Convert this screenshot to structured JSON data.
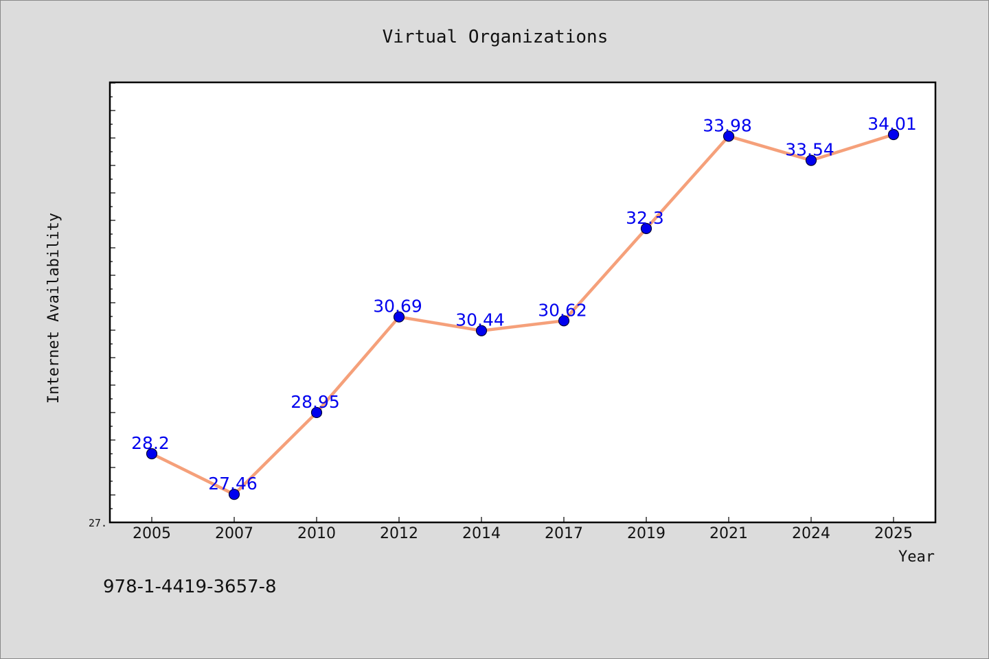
{
  "chart_data": {
    "type": "line",
    "title": "Virtual Organizations",
    "xlabel": "Year",
    "ylabel": "Internet Availability",
    "categories": [
      "2005",
      "2007",
      "2010",
      "2012",
      "2014",
      "2017",
      "2019",
      "2021",
      "2024",
      "2025"
    ],
    "series": [
      {
        "values": [
          28.2,
          27.46,
          28.95,
          30.69,
          30.44,
          30.62,
          32.3,
          33.98,
          33.54,
          34.01
        ],
        "labels": [
          "28.2",
          "27.46",
          "28.95",
          "30.69",
          "30.44",
          "30.62",
          "32.3",
          "33.98",
          "33.54",
          "34.01"
        ]
      }
    ],
    "ylim": [
      26.95,
      34.96
    ],
    "y_tick_labels": [
      {
        "value": 26.95,
        "label": "27."
      }
    ],
    "grid": false,
    "legend": "none",
    "colors": {
      "line": "#f5a07a",
      "marker": "#0000ee",
      "label": "#0000ee",
      "background": "#dcdcdc",
      "plot_background": "#ffffff"
    }
  },
  "footer": {
    "isbn": "978-1-4419-3657-8"
  }
}
